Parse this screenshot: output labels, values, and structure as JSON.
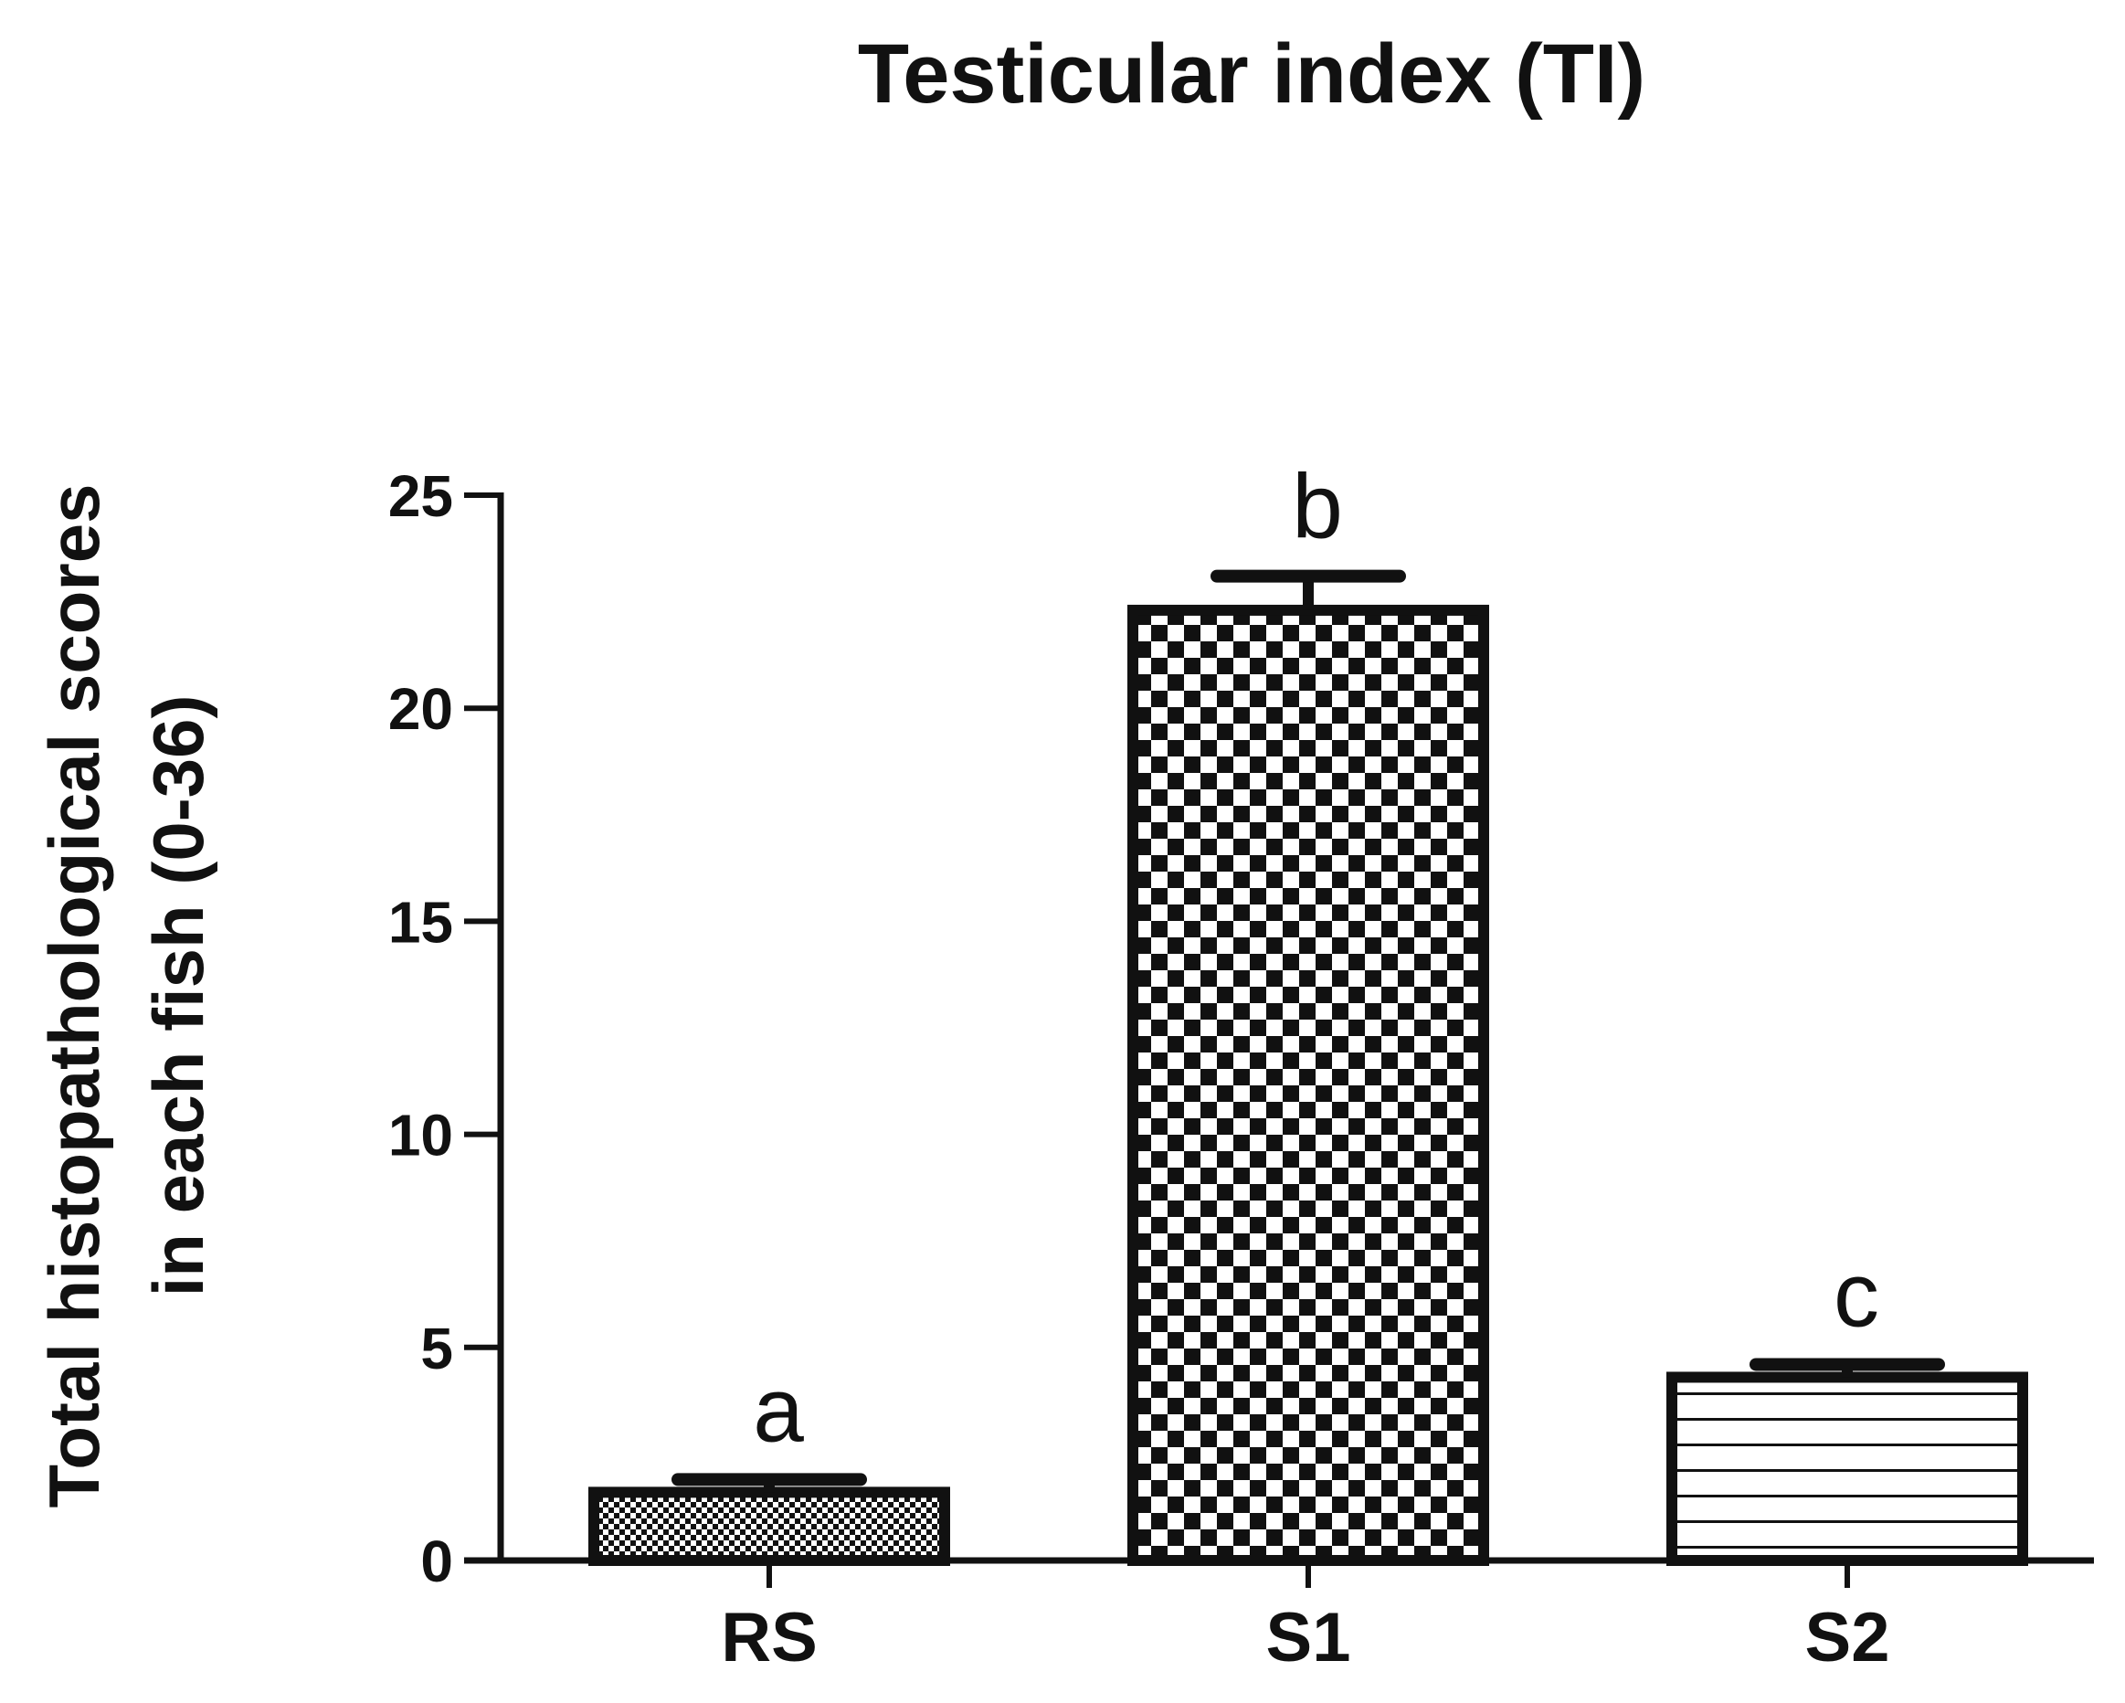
{
  "chart_data": {
    "type": "bar",
    "title": "Testicular index (TI)",
    "xlabel": "",
    "ylabel_lines": [
      "Total histopathological scores",
      "in each fish (0-36)"
    ],
    "ylim": [
      0,
      25
    ],
    "yticks": [
      0,
      5,
      10,
      15,
      20,
      25
    ],
    "categories": [
      "RS",
      "S1",
      "S2"
    ],
    "values": [
      1.6,
      22.3,
      4.3
    ],
    "errors": [
      0.3,
      0.8,
      0.3
    ],
    "annotations": [
      "a",
      "b",
      "c"
    ],
    "patterns": [
      "fine-checker",
      "coarse-checker",
      "horizontal-lines"
    ],
    "colors": {
      "ink": "#111111",
      "background": "#ffffff"
    }
  }
}
